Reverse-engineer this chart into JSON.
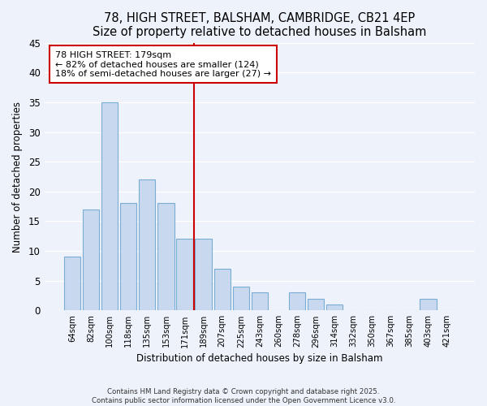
{
  "title": "78, HIGH STREET, BALSHAM, CAMBRIDGE, CB21 4EP",
  "subtitle": "Size of property relative to detached houses in Balsham",
  "xlabel": "Distribution of detached houses by size in Balsham",
  "ylabel": "Number of detached properties",
  "bar_labels": [
    "64sqm",
    "82sqm",
    "100sqm",
    "118sqm",
    "135sqm",
    "153sqm",
    "171sqm",
    "189sqm",
    "207sqm",
    "225sqm",
    "243sqm",
    "260sqm",
    "278sqm",
    "296sqm",
    "314sqm",
    "332sqm",
    "350sqm",
    "367sqm",
    "385sqm",
    "403sqm",
    "421sqm"
  ],
  "bar_values": [
    9,
    17,
    35,
    18,
    22,
    18,
    12,
    12,
    7,
    4,
    3,
    0,
    3,
    2,
    1,
    0,
    0,
    0,
    0,
    2,
    0
  ],
  "bar_color": "#c8d9ef",
  "bar_edge_color": "#7aadd4",
  "vline_color": "#cc0000",
  "ylim": [
    0,
    45
  ],
  "yticks": [
    0,
    5,
    10,
    15,
    20,
    25,
    30,
    35,
    40,
    45
  ],
  "annotation_title": "78 HIGH STREET: 179sqm",
  "annotation_line1": "← 82% of detached houses are smaller (124)",
  "annotation_line2": "18% of semi-detached houses are larger (27) →",
  "annotation_box_color": "#ffffff",
  "annotation_box_edge": "#cc0000",
  "footer_line1": "Contains HM Land Registry data © Crown copyright and database right 2025.",
  "footer_line2": "Contains public sector information licensed under the Open Government Licence v3.0.",
  "bg_color": "#eef2fb",
  "grid_color": "#ffffff",
  "title_fontsize": 10.5,
  "subtitle_fontsize": 9.5,
  "vline_bar_index": 7
}
